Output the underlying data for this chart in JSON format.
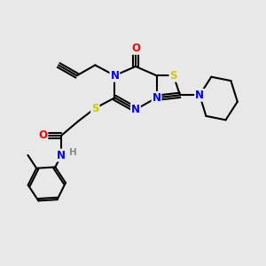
{
  "background_color": "#e8e8e8",
  "bond_color": "#000000",
  "atom_colors": {
    "N": "#0000ff",
    "O": "#ff0000",
    "S": "#cccc00",
    "H": "#888888",
    "C": "#000000"
  },
  "bond_width": 1.5,
  "figsize": [
    3.0,
    3.0
  ],
  "dpi": 100
}
